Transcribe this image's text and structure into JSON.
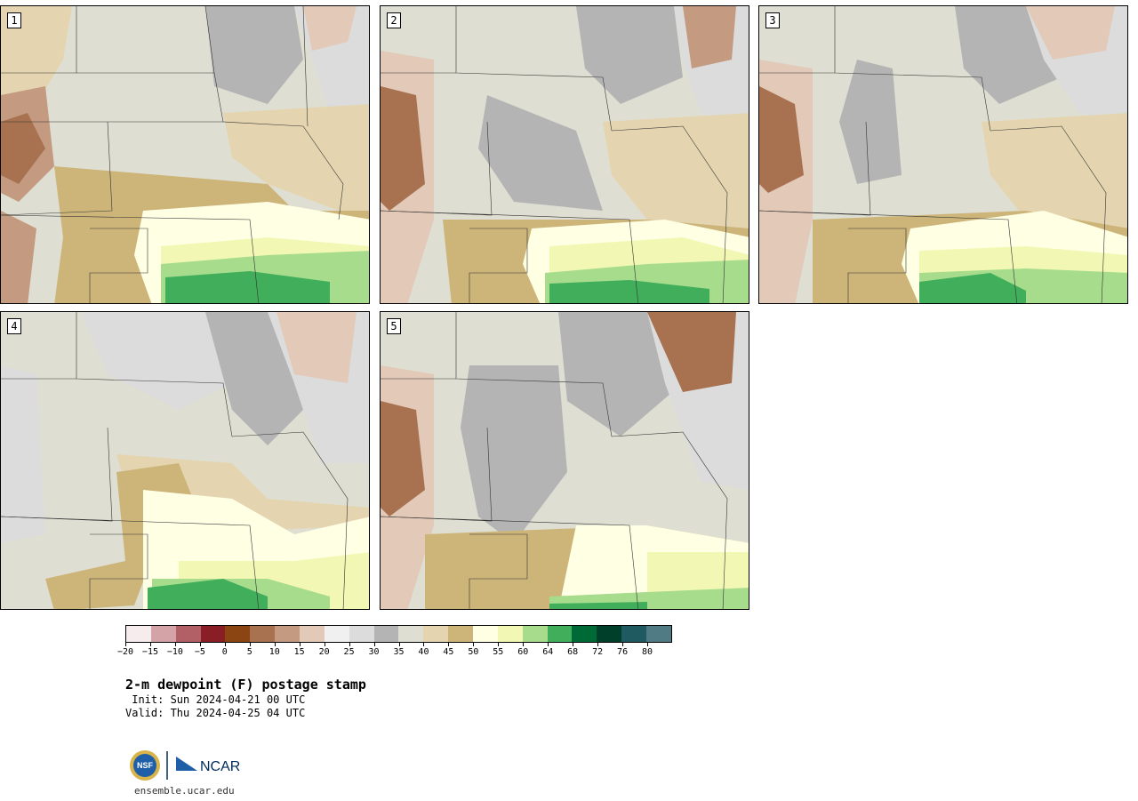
{
  "panels": [
    {
      "label": "1"
    },
    {
      "label": "2"
    },
    {
      "label": "3"
    },
    {
      "label": "4"
    },
    {
      "label": "5"
    }
  ],
  "colorbar": {
    "colors": [
      "#f6ecee",
      "#d4a3a8",
      "#b25f66",
      "#8a1e26",
      "#8b4513",
      "#a87250",
      "#c49a80",
      "#e2c9b8",
      "#f0f0f0",
      "#dcdcdc",
      "#b4b4b4",
      "#dedfd2",
      "#e4d5b0",
      "#cdb57a",
      "#ffffe4",
      "#f2f8b4",
      "#a6dc8c",
      "#40ae5a",
      "#006a37",
      "#00402a",
      "#1e5a60",
      "#507a84"
    ],
    "tick_labels": [
      "−20",
      "−15",
      "−10",
      "−5",
      "0",
      "5",
      "10",
      "15",
      "20",
      "25",
      "30",
      "35",
      "40",
      "45",
      "50",
      "55",
      "60",
      "64",
      "68",
      "72",
      "76",
      "80"
    ]
  },
  "text": {
    "title": "2-m dewpoint (F) postage stamp",
    "init": " Init: Sun 2024-04-21 00 UTC",
    "valid": "Valid: Thu 2024-04-25 04 UTC",
    "url": "ensemble.ucar.edu",
    "logo_nsf": "NSF",
    "logo_ncar": "NCAR"
  }
}
